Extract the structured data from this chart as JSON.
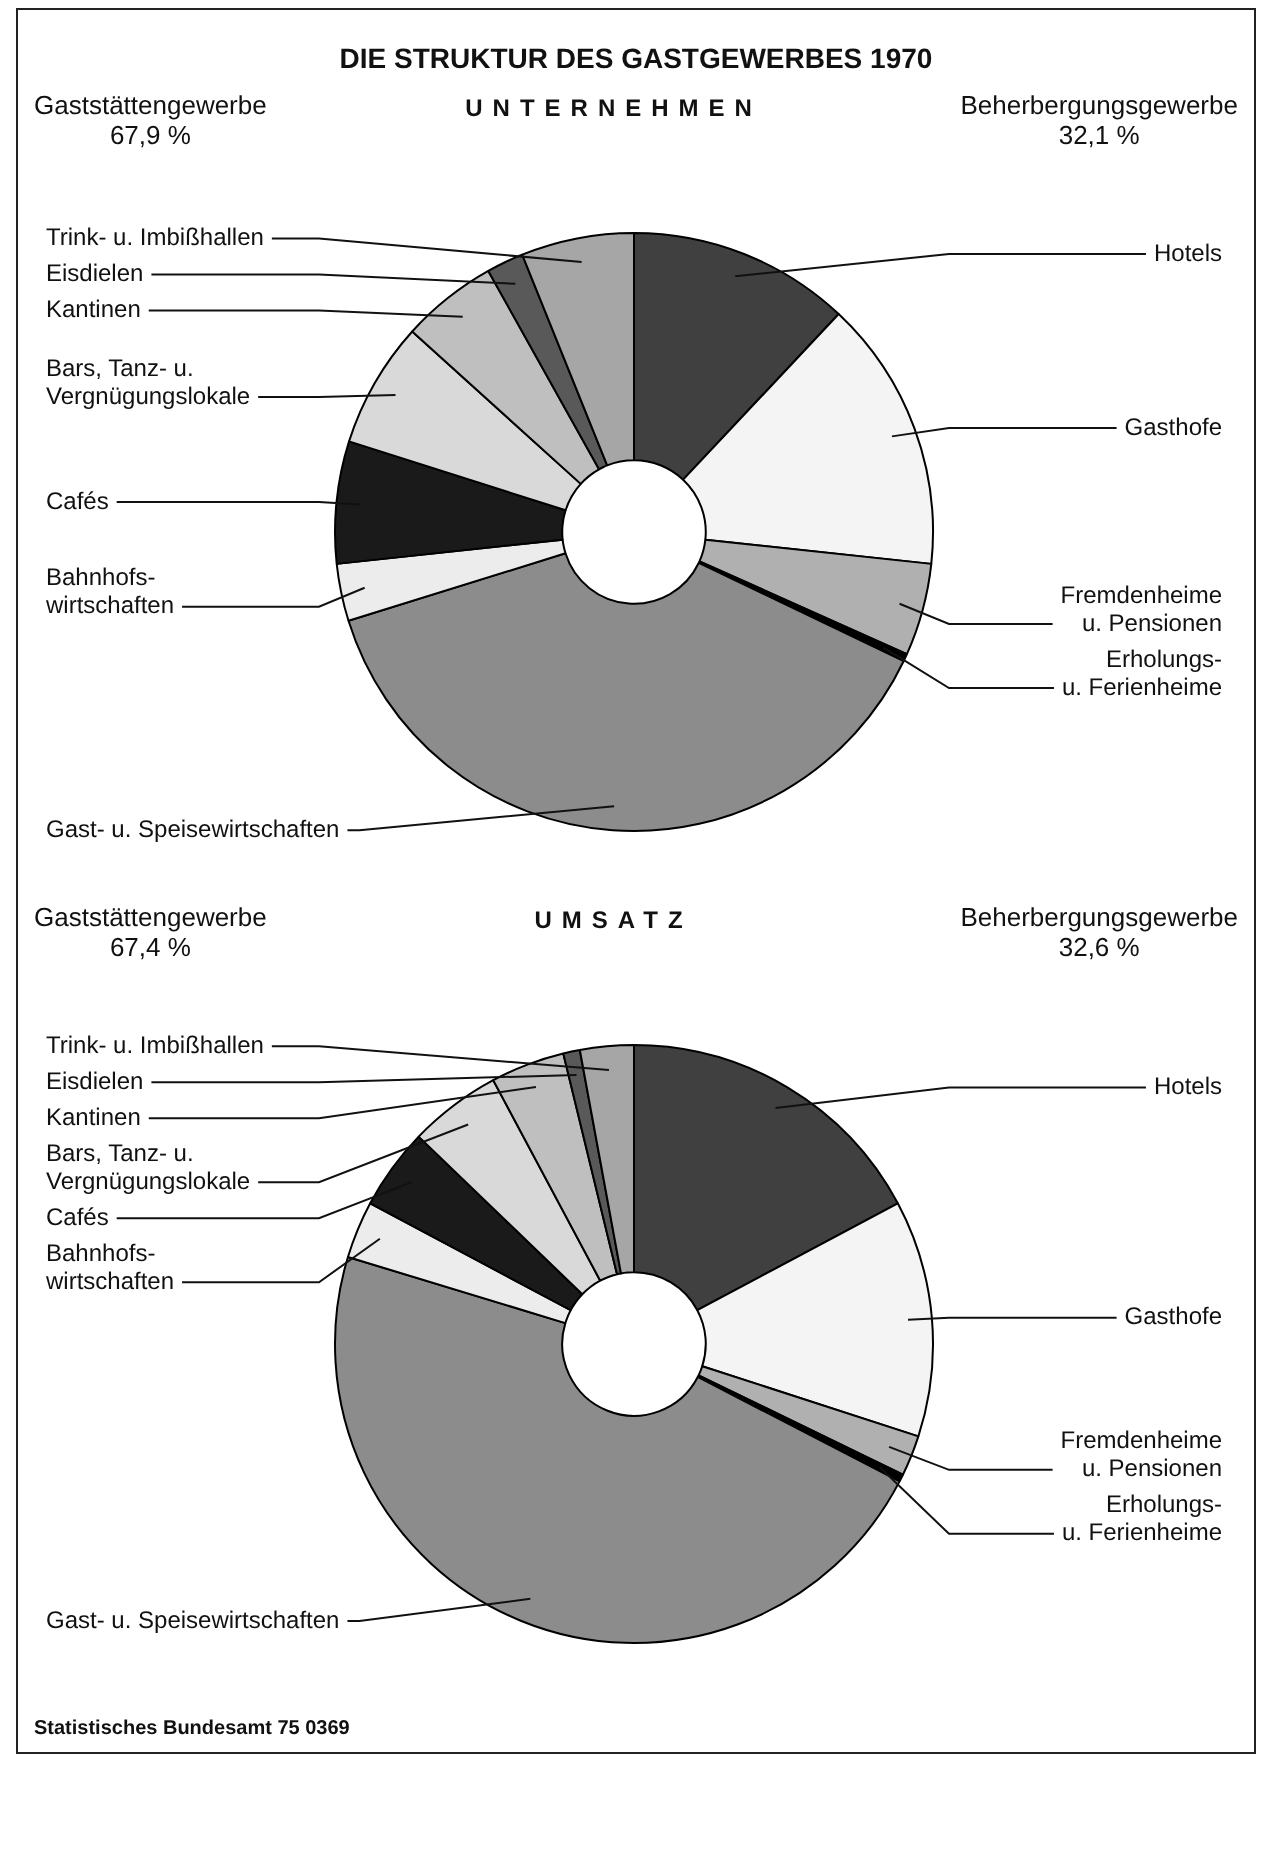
{
  "chart_data": [
    {
      "type": "donut",
      "title": "DIE STRUKTUR DES GASTGEWERBES 1970",
      "subtitle": "UNTERNEHMEN",
      "categories": [
        "Hotels",
        "Gasthofe",
        "Fremdenheime\nu. Pensionen",
        "Erholungs-\nu. Ferienheime",
        "Gast- u. Speisewirtschaften",
        "Bahnhofs-\nwirtschaften",
        "Cafés",
        "Bars, Tanz- u.\nVergnügungslokale",
        "Kantinen",
        "Eisdielen",
        "Trink- u. Imbißhallen"
      ],
      "values": [
        12.0,
        14.7,
        5.0,
        0.4,
        38.1,
        3.1,
        6.6,
        6.8,
        5.2,
        2.0,
        6.1
      ],
      "colors": [
        "#404040",
        "#f4f4f4",
        "#b0b0b0",
        "#000000",
        "#8c8c8c",
        "#ececec",
        "#1a1a1a",
        "#d9d9d9",
        "#bfbfbf",
        "#595959",
        "#a6a6a6"
      ],
      "annotations": [
        "Gaststättengewerbe\n67,9 %",
        "Beherbergungsgewerbe\n32,1 %"
      ]
    },
    {
      "type": "donut",
      "subtitle": "UMSATZ",
      "categories": [
        "Hotels",
        "Gasthofe",
        "Fremdenheime\nu. Pensionen",
        "Erholungs-\nu. Ferienheime",
        "Gast- u. Speisewirtschaften",
        "Bahnhofs-\nwirtschaften",
        "Cafés",
        "Bars, Tanz- u.\nVergnügungslokale",
        "Kantinen",
        "Eisdielen",
        "Trink- u. Imbißhallen"
      ],
      "values": [
        17.2,
        12.8,
        2.2,
        0.4,
        47.1,
        3.1,
        4.4,
        5.0,
        4.0,
        0.9,
        2.9
      ],
      "colors": [
        "#404040",
        "#f4f4f4",
        "#b0b0b0",
        "#000000",
        "#8c8c8c",
        "#ececec",
        "#1a1a1a",
        "#d9d9d9",
        "#bfbfbf",
        "#595959",
        "#a6a6a6"
      ],
      "annotations": [
        "Gaststättengewerbe\n67,4 %",
        "Beherbergungsgewerbe\n32,6 %",
        "Statistisches Bundesamt 75 0369"
      ]
    }
  ]
}
